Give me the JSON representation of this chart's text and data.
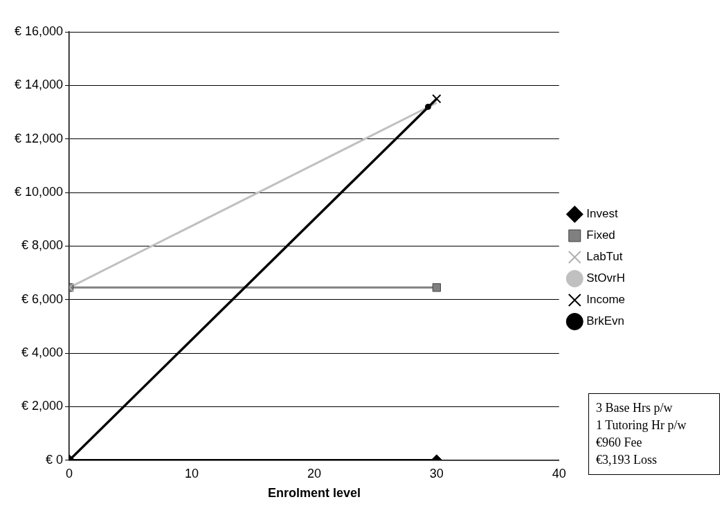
{
  "chart_data": {
    "type": "line",
    "xlabel": "Enrolment level",
    "xlim": [
      0,
      40
    ],
    "xticks": [
      0,
      10,
      20,
      30,
      40
    ],
    "ylim": [
      0,
      16000
    ],
    "yticks": [
      {
        "value": 0,
        "label": "€ 0"
      },
      {
        "value": 2000,
        "label": "€ 2,000"
      },
      {
        "value": 4000,
        "label": "€ 4,000"
      },
      {
        "value": 6000,
        "label": "€ 6,000"
      },
      {
        "value": 8000,
        "label": "€ 8,000"
      },
      {
        "value": 10000,
        "label": "€ 10,000"
      },
      {
        "value": 12000,
        "label": "€ 12,000"
      },
      {
        "value": 14000,
        "label": "€ 14,000"
      },
      {
        "value": 16000,
        "label": "€ 16,000"
      }
    ],
    "grid": "y",
    "legend": "right",
    "series": [
      {
        "name": "Invest",
        "color": "#000000",
        "x": [
          0,
          30
        ],
        "values": [
          0,
          0
        ],
        "marker": "diamond"
      },
      {
        "name": "Fixed",
        "color": "#808080",
        "x": [
          0,
          30
        ],
        "values": [
          6450,
          6450
        ],
        "marker": "square"
      },
      {
        "name": "LabTut",
        "color": "#b0b0b0",
        "x": [
          0
        ],
        "values": [
          6450
        ],
        "marker": "cross"
      },
      {
        "name": "StOvrH",
        "color": "#c0c0c0",
        "x": [
          0,
          30
        ],
        "values": [
          6450,
          13350
        ],
        "marker": "none"
      },
      {
        "name": "Income",
        "color": "#000000",
        "x": [
          0,
          30
        ],
        "values": [
          0,
          13500
        ],
        "marker": "cross"
      },
      {
        "name": "BrkEvn",
        "color": "#000000",
        "x": [
          29.3
        ],
        "values": [
          13200
        ],
        "marker": "circle"
      }
    ],
    "annotations": [
      "3 Base Hrs p/w",
      "1 Tutoring Hr p/w",
      "€960 Fee",
      "€3,193 Loss"
    ]
  }
}
